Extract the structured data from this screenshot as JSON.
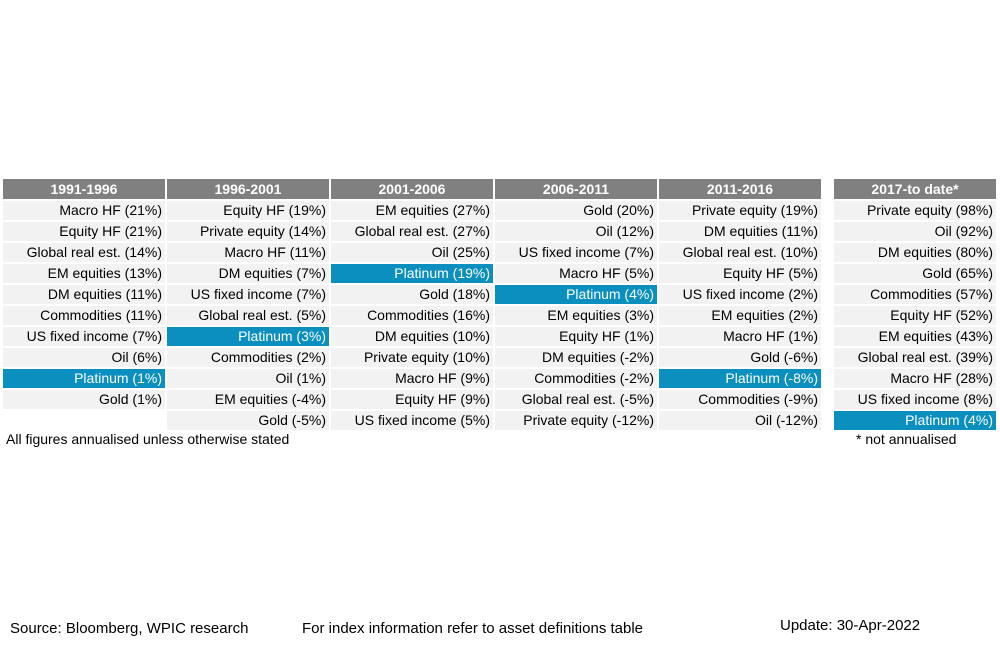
{
  "chart_data": {
    "type": "table",
    "highlight_color": "#0a8fbf",
    "header_color": "#808080",
    "columns": [
      {
        "period": "1991-1996",
        "items": [
          "Macro HF (21%)",
          "Equity HF (21%)",
          "Global real est. (14%)",
          "EM equities (13%)",
          "DM equities (11%)",
          "Commodities (11%)",
          "US fixed income (7%)",
          "Oil (6%)",
          "Platinum (1%)",
          "Gold (1%)",
          ""
        ],
        "highlight_index": 8
      },
      {
        "period": "1996-2001",
        "items": [
          "Equity HF (19%)",
          "Private equity (14%)",
          "Macro HF (11%)",
          "DM equities (7%)",
          "US fixed income (7%)",
          "Global real est. (5%)",
          "Platinum (3%)",
          "Commodities (2%)",
          "Oil (1%)",
          "EM equities (-4%)",
          "Gold (-5%)"
        ],
        "highlight_index": 6
      },
      {
        "period": "2001-2006",
        "items": [
          "EM equities (27%)",
          "Global real est. (27%)",
          "Oil (25%)",
          "Platinum (19%)",
          "Gold (18%)",
          "Commodities (16%)",
          "DM equities (10%)",
          "Private equity (10%)",
          "Macro HF (9%)",
          "Equity HF (9%)",
          "US fixed income (5%)"
        ],
        "highlight_index": 3
      },
      {
        "period": "2006-2011",
        "items": [
          "Gold (20%)",
          "Oil (12%)",
          "US fixed income (7%)",
          "Macro HF (5%)",
          "Platinum (4%)",
          "EM equities (3%)",
          "Equity HF (1%)",
          "DM equities (-2%)",
          "Commodities (-2%)",
          "Global real est. (-5%)",
          "Private equity (-12%)"
        ],
        "highlight_index": 4
      },
      {
        "period": "2011-2016",
        "items": [
          "Private equity (19%)",
          "DM equities (11%)",
          "Global real est. (10%)",
          "Equity HF (5%)",
          "US fixed income (2%)",
          "EM equities (2%)",
          "Macro HF (1%)",
          "Gold (-6%)",
          "Platinum (-8%)",
          "Commodities (-9%)",
          "Oil (-12%)"
        ],
        "highlight_index": 8
      },
      {
        "period": "2017-to date*",
        "items": [
          "Private equity (98%)",
          "Oil (92%)",
          "DM equities (80%)",
          "Gold (65%)",
          "Commodities (57%)",
          "Equity HF (52%)",
          "EM equities (43%)",
          "Global real est. (39%)",
          "Macro HF (28%)",
          "US fixed income (8%)",
          "Platinum (4%)"
        ],
        "highlight_index": 10
      }
    ]
  },
  "notes": {
    "annualised": "All figures annualised unless otherwise stated",
    "not_annualised": "* not annualised"
  },
  "footer": {
    "source": "Source: Bloomberg, WPIC research",
    "index_info": "For index information refer to asset definitions table",
    "update": "Update: 30-Apr-2022"
  }
}
